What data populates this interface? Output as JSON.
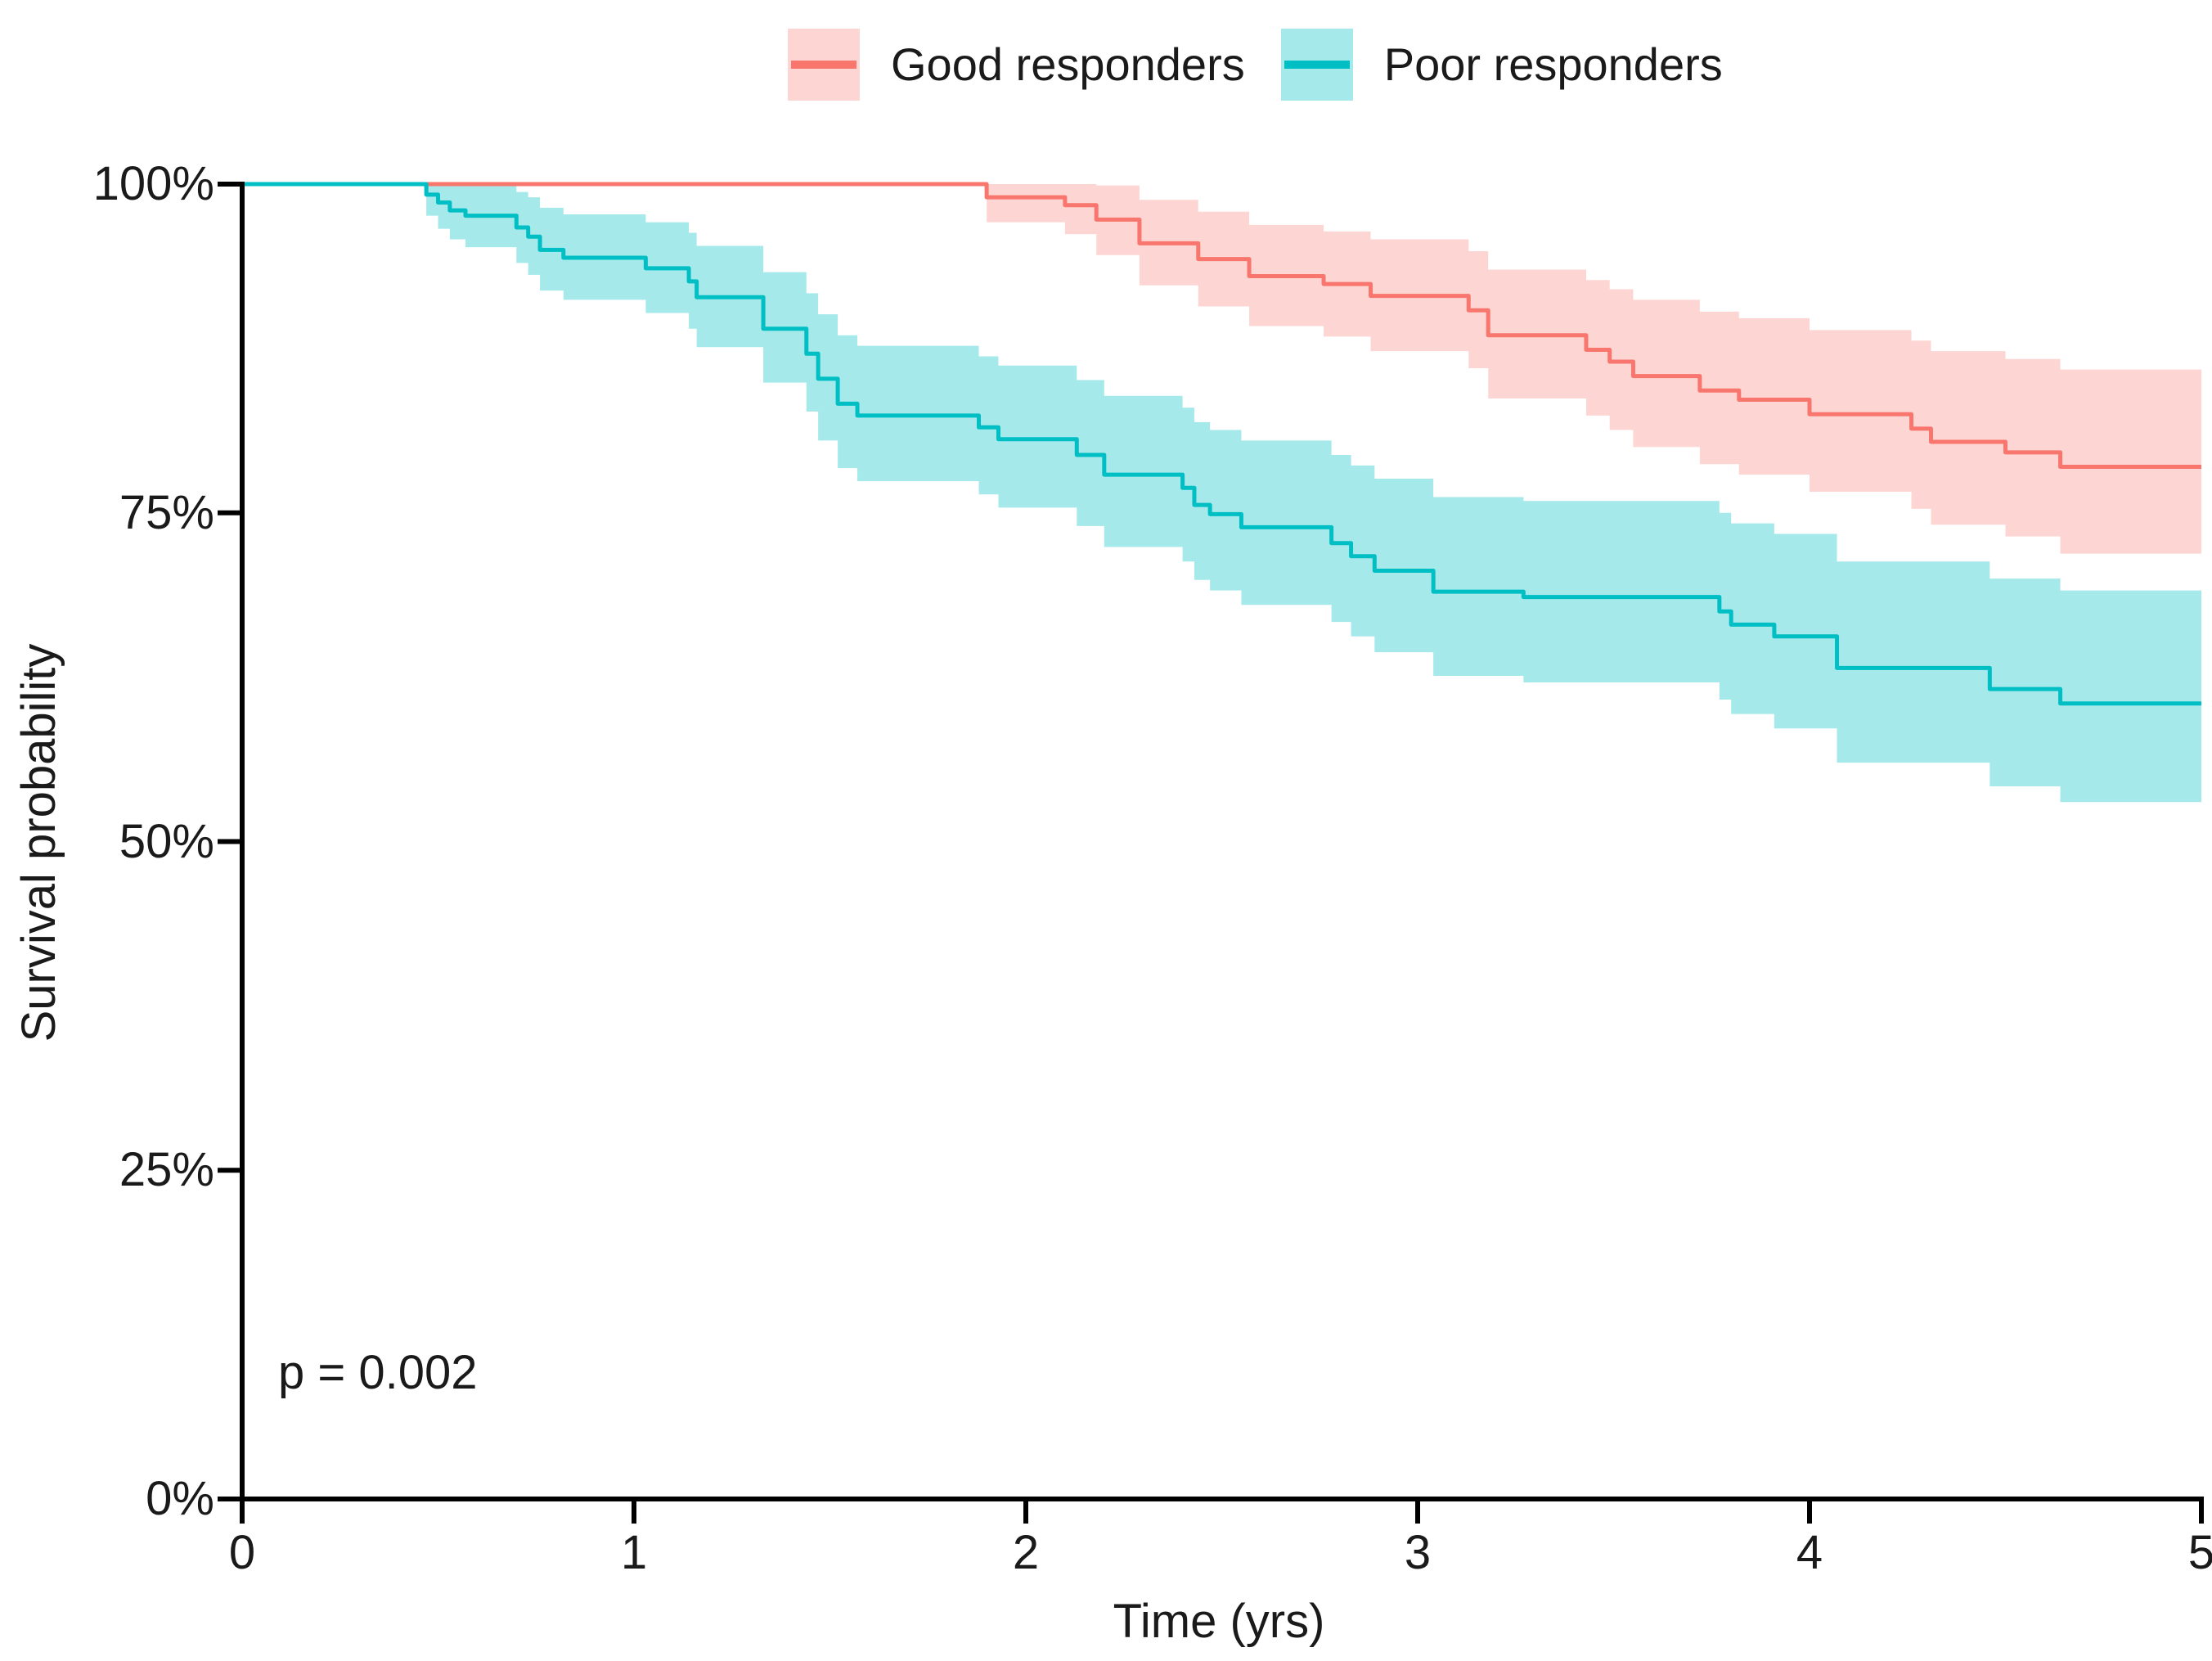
{
  "figure": {
    "p_value_label": "p = 0.002",
    "x_axis_title": "Time (yrs)",
    "y_axis_title": "Survival probability"
  },
  "legend": {
    "items": [
      {
        "label": "Good responders",
        "color": "#F8766D",
        "band_color": "rgba(248,118,109,0.30)"
      },
      {
        "label": "Poor responders",
        "color": "#00BFC4",
        "band_color": "rgba(0,191,196,0.35)"
      }
    ]
  },
  "chart_data": {
    "type": "line",
    "subtype": "kaplan-meier-step-curves-with-confidence-bands",
    "title": "",
    "xlabel": "Time (yrs)",
    "ylabel": "Survival probability",
    "xlim": [
      0,
      5
    ],
    "ylim_percent": [
      0,
      100
    ],
    "x_ticks": [
      0,
      1,
      2,
      3,
      4,
      5
    ],
    "y_ticks_percent": [
      0,
      25,
      50,
      75,
      100
    ],
    "y_tick_labels": [
      "0%",
      "25%",
      "50%",
      "75%",
      "100%"
    ],
    "grid": false,
    "legend_position": "top",
    "annotation": "p = 0.002",
    "series": [
      {
        "name": "Good responders",
        "color": "#F8766D",
        "band_color": "rgba(248,118,109,0.30)",
        "points_t_surv_lo_hi": [
          [
            0.0,
            100.0,
            100.0,
            100.0
          ],
          [
            1.9,
            99.0,
            97.1,
            100.0
          ],
          [
            2.1,
            98.4,
            96.2,
            100.0
          ],
          [
            2.18,
            97.3,
            94.6,
            99.9
          ],
          [
            2.29,
            95.5,
            92.3,
            98.8
          ],
          [
            2.44,
            94.3,
            90.7,
            97.9
          ],
          [
            2.57,
            93.0,
            89.2,
            96.9
          ],
          [
            2.76,
            92.4,
            88.4,
            96.4
          ],
          [
            2.88,
            91.5,
            87.3,
            95.8
          ],
          [
            3.13,
            90.4,
            86.0,
            94.9
          ],
          [
            3.18,
            88.5,
            83.7,
            93.5
          ],
          [
            3.43,
            87.4,
            82.4,
            92.7
          ],
          [
            3.49,
            86.5,
            81.3,
            92.0
          ],
          [
            3.55,
            85.4,
            80.0,
            91.2
          ],
          [
            3.72,
            84.3,
            78.7,
            90.3
          ],
          [
            3.82,
            83.6,
            77.9,
            89.8
          ],
          [
            4.0,
            82.5,
            76.6,
            88.9
          ],
          [
            4.26,
            81.4,
            75.3,
            88.1
          ],
          [
            4.31,
            80.4,
            74.1,
            87.3
          ],
          [
            4.5,
            79.6,
            73.2,
            86.7
          ],
          [
            4.64,
            78.5,
            71.9,
            85.9
          ],
          [
            5.0,
            78.5,
            71.9,
            85.9
          ]
        ]
      },
      {
        "name": "Poor responders",
        "color": "#00BFC4",
        "band_color": "rgba(0,191,196,0.35)",
        "points_t_surv_lo_hi": [
          [
            0.0,
            100.0,
            100.0,
            100.0
          ],
          [
            0.47,
            99.2,
            97.6,
            100.0
          ],
          [
            0.5,
            98.6,
            96.6,
            100.0
          ],
          [
            0.53,
            98.0,
            95.8,
            100.0
          ],
          [
            0.57,
            97.6,
            95.2,
            99.9
          ],
          [
            0.7,
            96.7,
            94.0,
            99.4
          ],
          [
            0.73,
            96.0,
            93.1,
            99.0
          ],
          [
            0.76,
            95.0,
            91.9,
            98.2
          ],
          [
            0.82,
            94.4,
            91.2,
            97.7
          ],
          [
            1.03,
            93.6,
            90.2,
            97.1
          ],
          [
            1.14,
            92.6,
            89.0,
            96.3
          ],
          [
            1.16,
            91.4,
            87.6,
            95.3
          ],
          [
            1.33,
            89.0,
            84.9,
            93.3
          ],
          [
            1.44,
            87.1,
            82.7,
            91.7
          ],
          [
            1.47,
            85.2,
            80.5,
            90.1
          ],
          [
            1.52,
            83.3,
            78.4,
            88.5
          ],
          [
            1.57,
            82.4,
            77.4,
            87.7
          ],
          [
            1.88,
            81.5,
            76.4,
            86.9
          ],
          [
            1.93,
            80.6,
            75.4,
            86.2
          ],
          [
            2.13,
            79.4,
            74.0,
            85.1
          ],
          [
            2.2,
            77.9,
            72.4,
            83.9
          ],
          [
            2.4,
            76.9,
            71.3,
            83.0
          ],
          [
            2.43,
            75.6,
            69.9,
            81.9
          ],
          [
            2.47,
            74.9,
            69.1,
            81.3
          ],
          [
            2.55,
            73.9,
            68.0,
            80.5
          ],
          [
            2.78,
            72.7,
            66.7,
            79.4
          ],
          [
            2.83,
            71.7,
            65.6,
            78.6
          ],
          [
            2.89,
            70.6,
            64.4,
            77.6
          ],
          [
            3.04,
            69.0,
            62.6,
            76.2
          ],
          [
            3.27,
            68.6,
            62.1,
            75.9
          ],
          [
            3.77,
            67.5,
            60.8,
            75.0
          ],
          [
            3.8,
            66.5,
            59.7,
            74.2
          ],
          [
            3.91,
            65.6,
            58.6,
            73.4
          ],
          [
            4.07,
            63.2,
            56.0,
            71.3
          ],
          [
            4.46,
            61.6,
            54.2,
            70.0
          ],
          [
            4.64,
            60.5,
            53.0,
            69.1
          ],
          [
            5.0,
            60.5,
            53.0,
            69.1
          ]
        ]
      }
    ]
  },
  "style": {
    "axis_color": "#000000",
    "text_color": "#1a1a1a"
  }
}
